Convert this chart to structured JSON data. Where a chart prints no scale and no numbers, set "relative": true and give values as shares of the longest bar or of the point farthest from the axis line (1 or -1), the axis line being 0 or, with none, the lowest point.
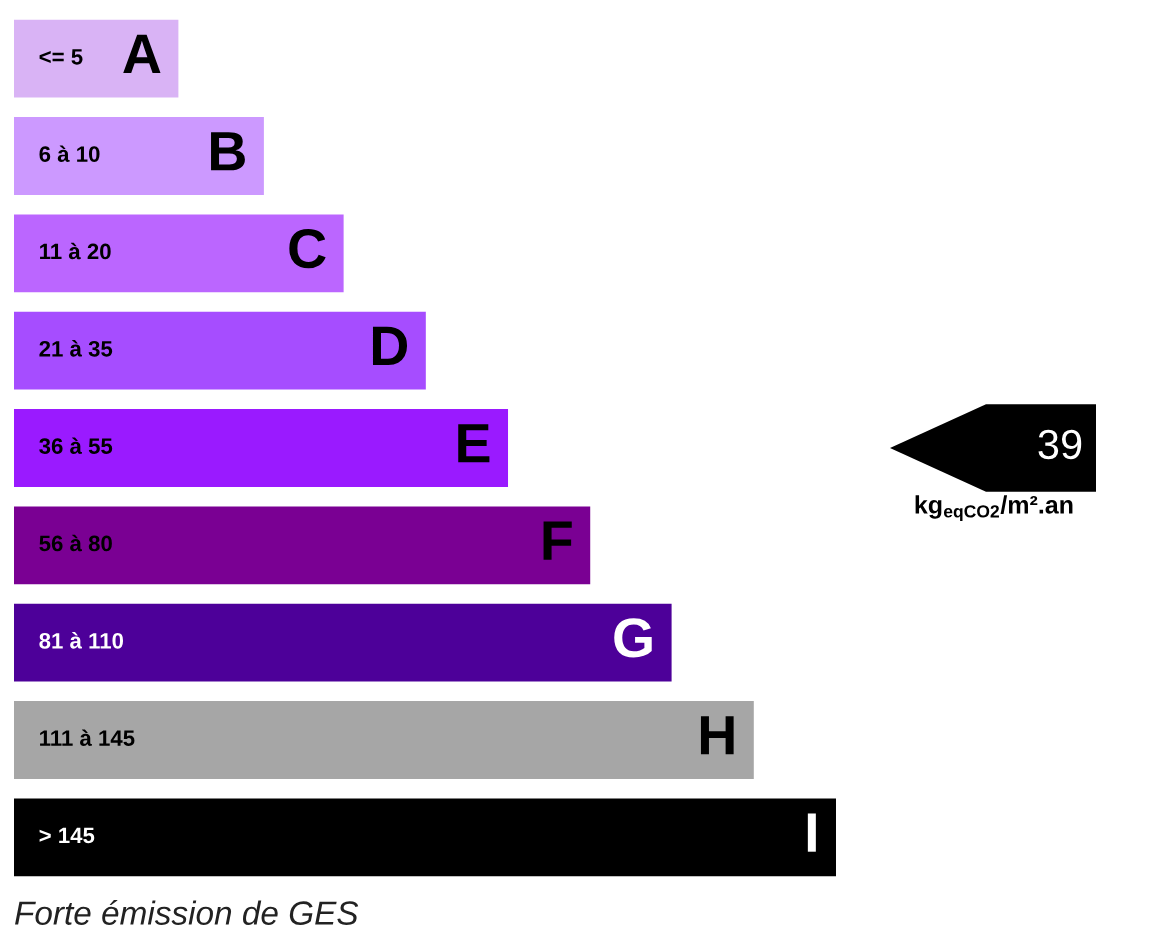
{
  "chart_data": {
    "type": "bar",
    "orientation": "horizontal",
    "relative": true,
    "categories": [
      "A",
      "B",
      "C",
      "D",
      "E",
      "F",
      "G",
      "H",
      "I"
    ],
    "values": [
      0.2,
      0.304,
      0.401,
      0.501,
      0.601,
      0.701,
      0.8,
      0.9,
      1
    ],
    "colors": [
      "#d9b3f5",
      "#cc99ff",
      "#bb66ff",
      "#a64dff",
      "#9a1aff",
      "#7a0093",
      "#4d0099",
      "#a6a6a6",
      "#000000"
    ],
    "annotations": [
      "<= 5",
      "6 à 10",
      "11 à 20",
      "21 à 35",
      "36 à 55",
      "56 à 80",
      "81 à 110",
      "111 à 145",
      "> 145",
      "39",
      "kg$_{eqCO2}$/m².an",
      "Forte émission de GES"
    ]
  }
}
